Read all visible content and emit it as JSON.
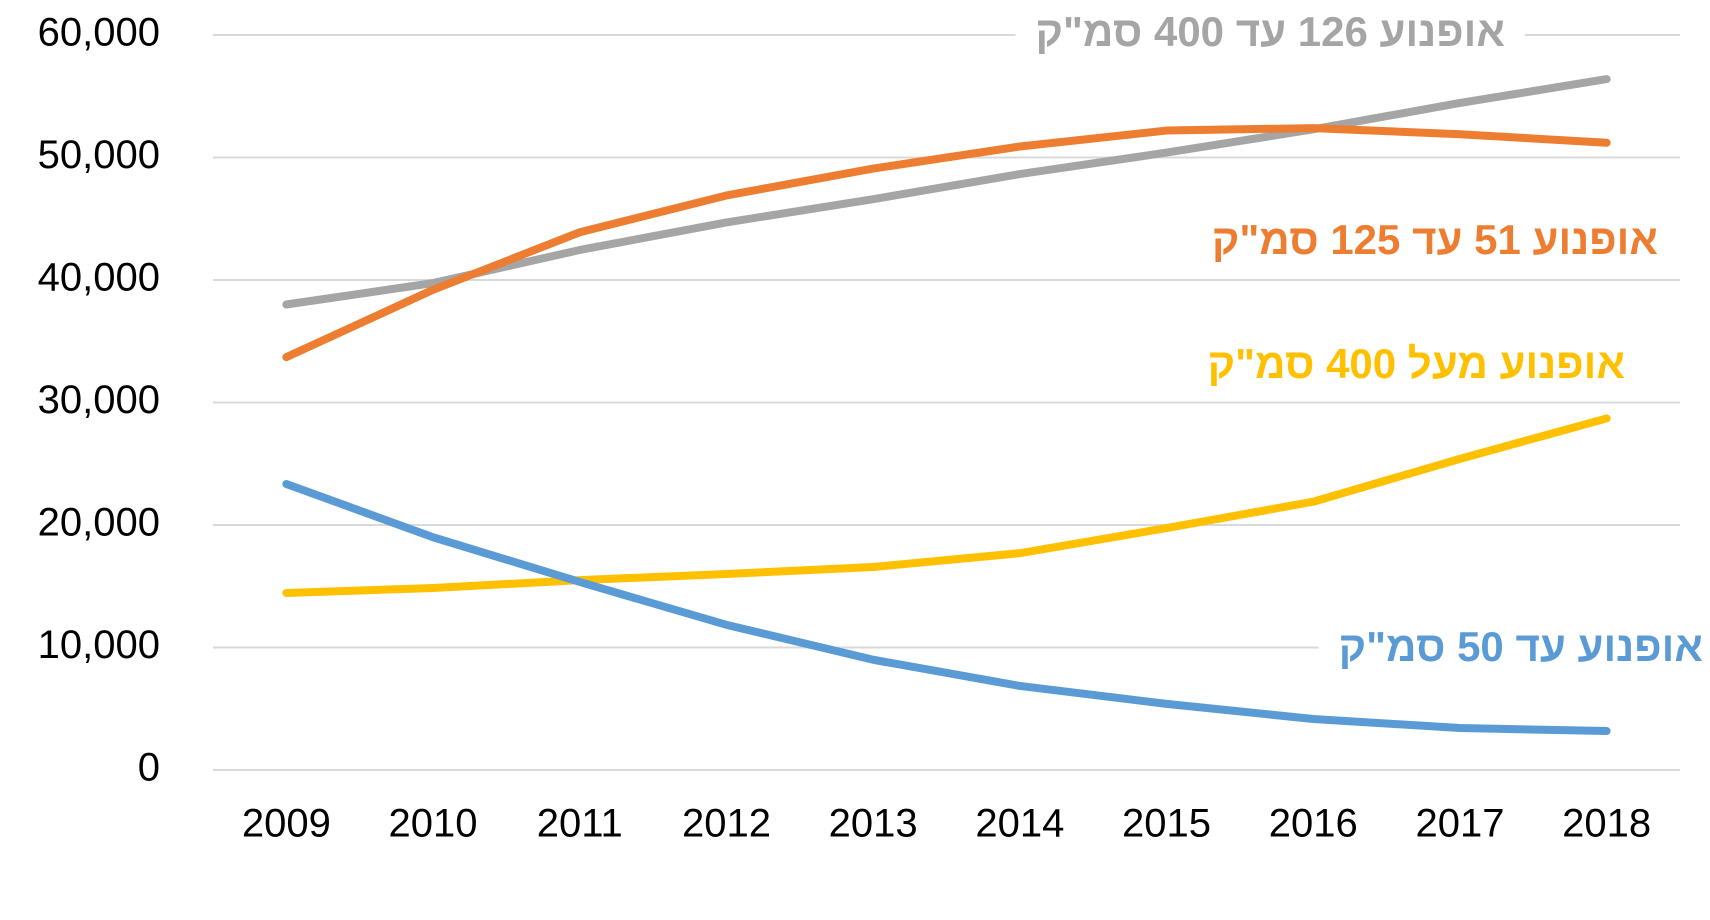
{
  "chart_data": {
    "type": "line",
    "categories": [
      "2009",
      "2010",
      "2011",
      "2012",
      "2013",
      "2014",
      "2015",
      "2016",
      "2017",
      "2018"
    ],
    "series": [
      {
        "name": "אופנוע 126 עד 400 סמ\"ק",
        "color": "#a5a5a5",
        "values": [
          38000,
          39750,
          42450,
          44700,
          46600,
          48650,
          50400,
          52300,
          54450,
          56400
        ]
      },
      {
        "name": "אופנוע 51 עד 125 סמ\"ק",
        "color": "#ed7d31",
        "values": [
          33700,
          39200,
          43900,
          46900,
          49100,
          50900,
          52200,
          52400,
          51900,
          51200
        ]
      },
      {
        "name": "אופנוע מעל 400 סמ\"ק",
        "color": "#ffc000",
        "values": [
          14450,
          14860,
          15500,
          16000,
          16570,
          17700,
          19750,
          21900,
          25400,
          28700
        ]
      },
      {
        "name": "אופנוע עד 50 סמ\"ק",
        "color": "#5b9bd5",
        "values": [
          23350,
          19000,
          15350,
          11850,
          9000,
          6860,
          5400,
          4160,
          3430,
          3180
        ]
      }
    ],
    "ylim": [
      0,
      60000
    ],
    "yticks": [
      0,
      {
        "value": 10000,
        "label": "10,000"
      },
      {
        "value": 20000,
        "label": "20,000"
      },
      {
        "value": 30000,
        "label": "30,000"
      },
      {
        "value": 40000,
        "label": "40,000"
      },
      {
        "value": 50000,
        "label": "50,000"
      },
      {
        "value": 60000,
        "label": "60,000"
      }
    ],
    "grid": true
  }
}
